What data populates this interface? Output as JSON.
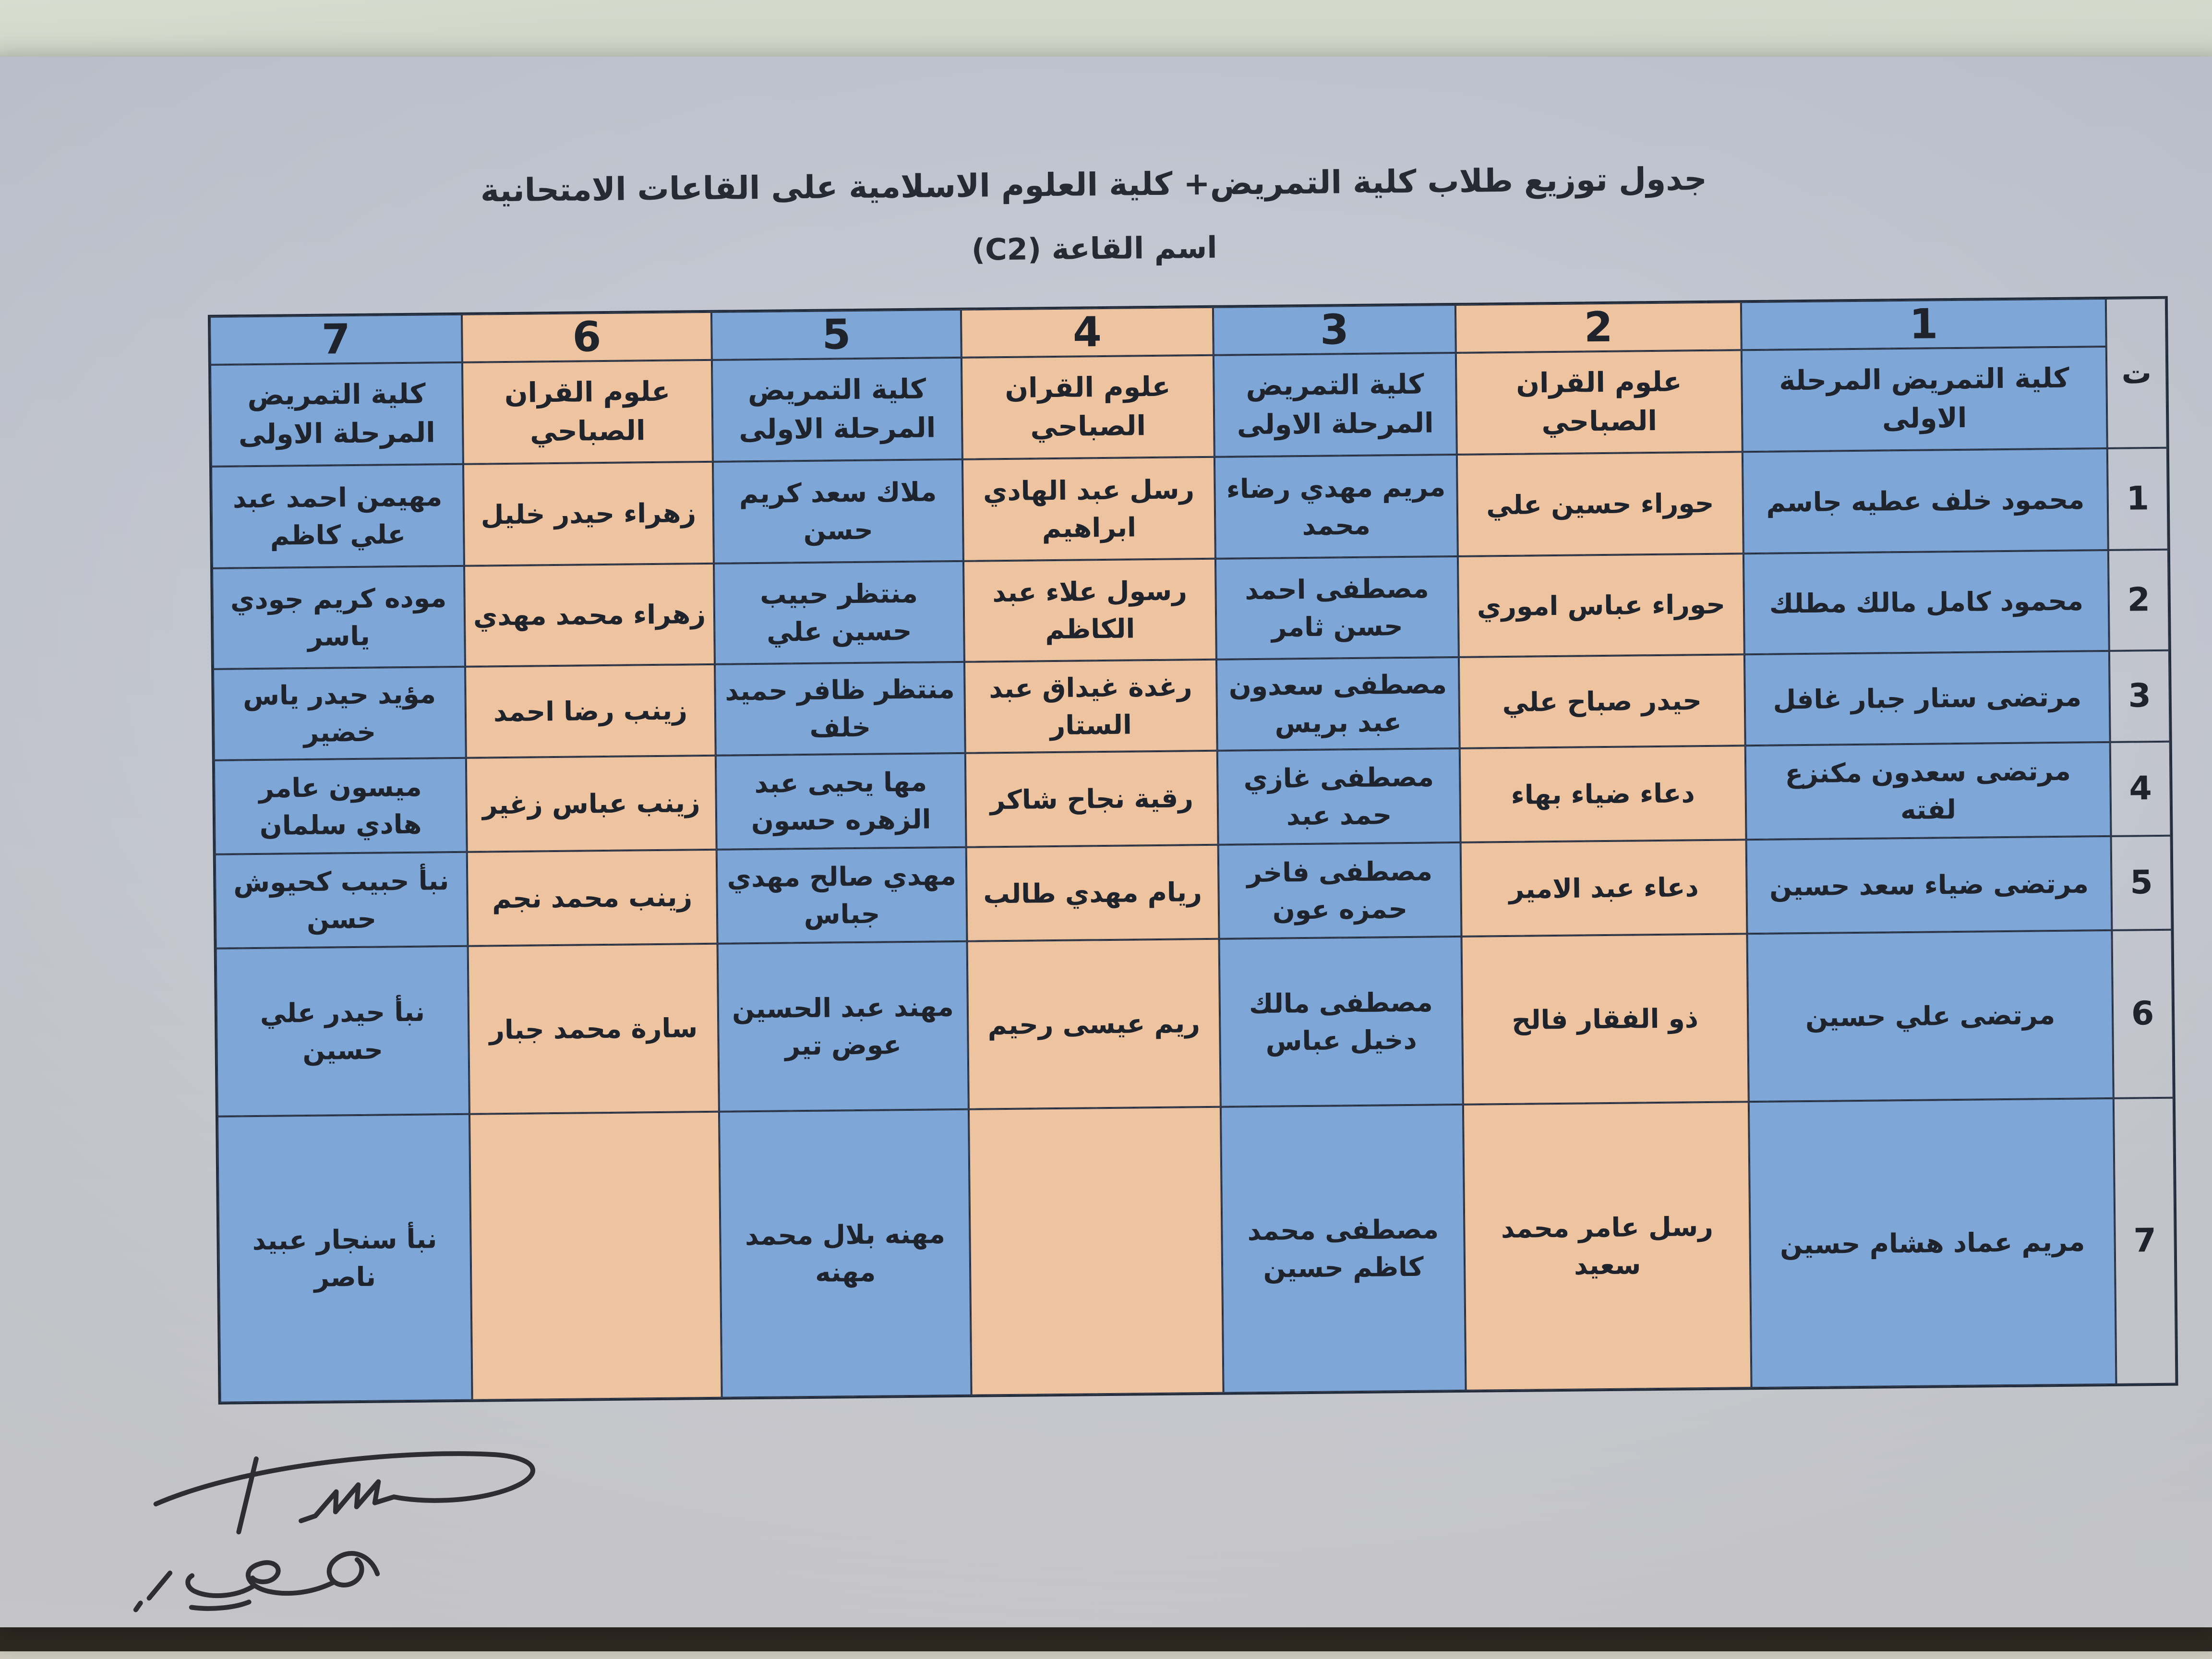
{
  "page": {
    "title_line1": "جدول توزيع طلاب كلية التمريض+ كلية العلوم الاسلامية على القاعات الامتحانية",
    "title_line2": "اسم القاعة (C2)"
  },
  "colors": {
    "blue": "#7ea6d7",
    "orange": "#edc3a0",
    "paper": "#cbced6",
    "border": "#283244"
  },
  "table": {
    "serial_header": "ت",
    "columns": [
      {
        "number": "1",
        "college": "كلية التمريض المرحلة الاولى",
        "color": "blue"
      },
      {
        "number": "2",
        "college": "علوم القران الصباحي",
        "color": "orange"
      },
      {
        "number": "3",
        "college": "كلية التمريض المرحلة الاولى",
        "color": "blue"
      },
      {
        "number": "4",
        "college": "علوم القران الصباحي",
        "color": "orange"
      },
      {
        "number": "5",
        "college": "كلية التمريض المرحلة الاولى",
        "color": "blue"
      },
      {
        "number": "6",
        "college": "علوم القران الصباحي",
        "color": "orange"
      },
      {
        "number": "7",
        "college": "كلية التمريض المرحلة الاولى",
        "color": "blue"
      }
    ],
    "rows": [
      {
        "serial": "1",
        "cells": [
          "محمود خلف عطيه جاسم",
          "حوراء حسين علي",
          "مريم مهدي رضاء محمد",
          "رسل عبد الهادي ابراهيم",
          "ملاك سعد كريم حسن",
          "زهراء حيدر خليل",
          "مهيمن احمد عبد علي كاظم"
        ]
      },
      {
        "serial": "2",
        "cells": [
          "محمود كامل مالك مطلك",
          "حوراء عباس اموري",
          "مصطفى احمد حسن ثامر",
          "رسول علاء عبد الكاظم",
          "منتظر حبيب حسين علي",
          "زهراء محمد مهدي",
          "موده كريم جودي ياسر"
        ]
      },
      {
        "serial": "3",
        "cells": [
          "مرتضى ستار جبار غافل",
          "حيدر صباح علي",
          "مصطفى سعدون عبد بريس",
          "رغدة غيداق عبد الستار",
          "منتظر ظافر حميد خلف",
          "زينب رضا احمد",
          "مؤيد حيدر ياس خضير"
        ]
      },
      {
        "serial": "4",
        "cells": [
          "مرتضى سعدون مكنزع لفته",
          "دعاء ضياء بهاء",
          "مصطفى غازي حمد عبد",
          "رقية نجاح شاكر",
          "مها يحيى عبد الزهره حسون",
          "زينب عباس زغير",
          "ميسون عامر هادي سلمان"
        ]
      },
      {
        "serial": "5",
        "cells": [
          "مرتضى ضياء سعد حسين",
          "دعاء عبد الامير",
          "مصطفى فاخر حمزه عون",
          "ريام مهدي طالب",
          "مهدي صالح مهدي جباس",
          "زينب محمد نجم",
          "نبأ حبيب كحيوش حسن"
        ]
      },
      {
        "serial": "6",
        "cells": [
          "مرتضى علي حسين",
          "ذو الفقار فالح",
          "مصطفى مالك دخيل عباس",
          "ريم عيسى رحيم",
          "مهند عبد الحسين عوض تير",
          "سارة محمد جبار",
          "نبأ حيدر علي حسين"
        ]
      },
      {
        "serial": "7",
        "cells": [
          "مريم عماد هشام حسين",
          "رسل عامر محمد سعيد",
          "مصطفى محمد كاظم حسين",
          "",
          "مهنه بلال محمد مهنه",
          "",
          "نبأ سنجار عبيد ناصر"
        ]
      }
    ]
  }
}
